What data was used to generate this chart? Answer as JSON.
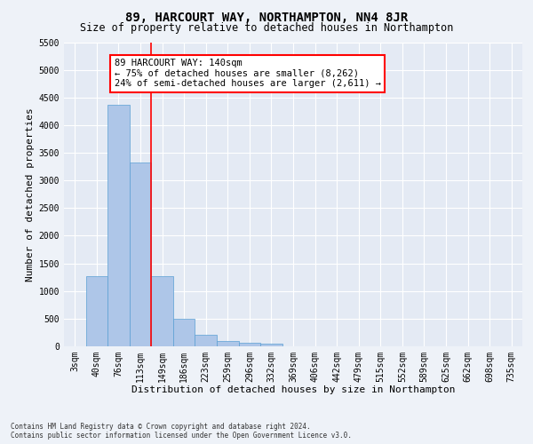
{
  "title": "89, HARCOURT WAY, NORTHAMPTON, NN4 8JR",
  "subtitle": "Size of property relative to detached houses in Northampton",
  "xlabel": "Distribution of detached houses by size in Northampton",
  "ylabel": "Number of detached properties",
  "footer_line1": "Contains HM Land Registry data © Crown copyright and database right 2024.",
  "footer_line2": "Contains public sector information licensed under the Open Government Licence v3.0.",
  "bar_labels": [
    "3sqm",
    "40sqm",
    "76sqm",
    "113sqm",
    "149sqm",
    "186sqm",
    "223sqm",
    "259sqm",
    "296sqm",
    "332sqm",
    "369sqm",
    "406sqm",
    "442sqm",
    "479sqm",
    "515sqm",
    "552sqm",
    "589sqm",
    "625sqm",
    "662sqm",
    "698sqm",
    "735sqm"
  ],
  "bar_values": [
    0,
    1270,
    4370,
    3320,
    1270,
    490,
    215,
    95,
    65,
    55,
    0,
    0,
    0,
    0,
    0,
    0,
    0,
    0,
    0,
    0,
    0
  ],
  "bar_color": "#aec6e8",
  "bar_edge_color": "#5a9fd4",
  "ylim": [
    0,
    5500
  ],
  "yticks": [
    0,
    500,
    1000,
    1500,
    2000,
    2500,
    3000,
    3500,
    4000,
    4500,
    5000,
    5500
  ],
  "vline_x": 3.5,
  "vline_color": "red",
  "annotation_title": "89 HARCOURT WAY: 140sqm",
  "annotation_line1": "← 75% of detached houses are smaller (8,262)",
  "annotation_line2": "24% of semi-detached houses are larger (2,611) →",
  "annotation_box_color": "red",
  "background_color": "#eef2f8",
  "plot_bg_color": "#e4eaf4",
  "grid_color": "#ffffff",
  "title_fontsize": 10,
  "subtitle_fontsize": 8.5,
  "axis_label_fontsize": 8,
  "tick_fontsize": 7,
  "annotation_fontsize": 7.5,
  "ylabel_fontsize": 8
}
